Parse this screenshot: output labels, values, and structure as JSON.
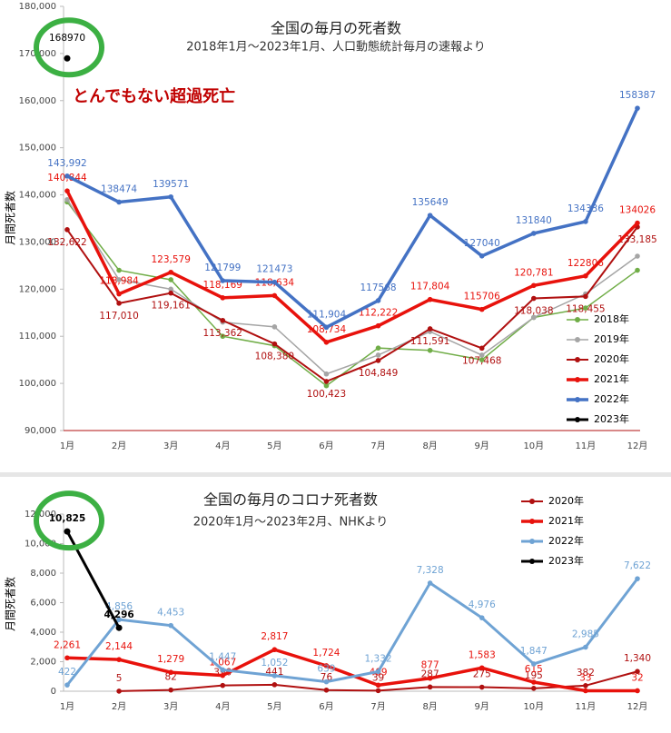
{
  "chart_data": [
    {
      "type": "line",
      "title": "全国の毎月の死者数",
      "subtitle": "2018年1月～2023年1月、人口動態統計毎月の速報より",
      "annotation": "とんでもない超過死亡",
      "y_label": "月間死者数",
      "categories": [
        "1月",
        "2月",
        "3月",
        "4月",
        "5月",
        "6月",
        "7月",
        "8月",
        "9月",
        "10月",
        "11月",
        "12月"
      ],
      "ylim": [
        90000,
        180000
      ],
      "yticks": [
        {
          "value": 90000,
          "label": "90,000"
        },
        {
          "value": 100000,
          "label": "100,000"
        },
        {
          "value": 110000,
          "label": "110,000"
        },
        {
          "value": 120000,
          "label": "120,000"
        },
        {
          "value": 130000,
          "label": "130,000"
        },
        {
          "value": 140000,
          "label": "140,000"
        },
        {
          "value": 150000,
          "label": "150,000"
        },
        {
          "value": 160000,
          "label": "160,000"
        },
        {
          "value": 170000,
          "label": "170,000"
        },
        {
          "value": 180000,
          "label": "180,000"
        }
      ],
      "grid": false,
      "legend": "lower right",
      "series": [
        {
          "name": "2018年",
          "color": "#70ad47",
          "width": 1.5,
          "values": [
            138500,
            124000,
            122000,
            110000,
            108000,
            99500,
            107500,
            107000,
            105000,
            114000,
            116000,
            124000
          ]
        },
        {
          "name": "2019年",
          "color": "#a5a5a5",
          "width": 1.5,
          "values": [
            139000,
            122000,
            120000,
            113000,
            112000,
            102000,
            106000,
            111000,
            106000,
            114000,
            119000,
            127000
          ]
        },
        {
          "name": "2020年",
          "color": "#b01010",
          "width": 2,
          "label_position": "below",
          "values": [
            132622,
            117010,
            119161,
            113362,
            108380,
            100423,
            104849,
            111591,
            107468,
            118038,
            118455,
            133185
          ],
          "value_labels": [
            "132,622",
            "117,010",
            "119,161",
            "113,362",
            "108,380",
            "100,423",
            "104,849",
            "111,591",
            "107,468",
            "118,038",
            "118,455",
            "133,185"
          ]
        },
        {
          "name": "2021年",
          "color": "#e8120c",
          "width": 3.5,
          "values": [
            140844,
            118984,
            123579,
            118169,
            118634,
            108734,
            112222,
            117804,
            115706,
            120781,
            122806,
            134026
          ],
          "value_labels": [
            "140,844",
            "118,984",
            "123,579",
            "118,169",
            "118,634",
            "108,734",
            "112,222",
            "117,804",
            "115706",
            "120,781",
            "122806",
            "134026"
          ]
        },
        {
          "name": "2022年",
          "color": "#4472c4",
          "width": 3.5,
          "values": [
            143992,
            138474,
            139571,
            121799,
            121473,
            111904,
            117568,
            135649,
            127040,
            131840,
            134336,
            158387
          ],
          "value_labels": [
            "143,992",
            "138474",
            "139571",
            "121799",
            "121473",
            "111,904",
            "117568",
            "135649",
            "127040",
            "131840",
            "134336",
            "158387"
          ]
        },
        {
          "name": "2023年",
          "color": "#000000",
          "width": 3,
          "highlight": true,
          "values": [
            168970,
            null,
            null,
            null,
            null,
            null,
            null,
            null,
            null,
            null,
            null,
            null
          ]
        }
      ]
    },
    {
      "type": "line",
      "title": "全国の毎月のコロナ死者数",
      "subtitle": "2020年1月～2023年2月、NHKより",
      "y_label": "月間死者数",
      "categories": [
        "1月",
        "2月",
        "3月",
        "4月",
        "5月",
        "6月",
        "7月",
        "8月",
        "9月",
        "10月",
        "11月",
        "12月"
      ],
      "ylim": [
        0,
        12000
      ],
      "yticks": [
        0,
        {
          "value": 2000,
          "label": "2,000"
        },
        {
          "value": 4000,
          "label": "4,000"
        },
        {
          "value": 6000,
          "label": "6,000"
        },
        {
          "value": 8000,
          "label": "8,000"
        },
        {
          "value": 10000,
          "label": "10,000"
        },
        {
          "value": 12000,
          "label": "12,000"
        }
      ],
      "grid": false,
      "legend": "upper right",
      "series": [
        {
          "name": "2020年",
          "color": "#b01010",
          "width": 2,
          "values": [
            null,
            5,
            82,
            390,
            441,
            76,
            39,
            287,
            275,
            195,
            382,
            1340
          ],
          "value_labels": [
            null,
            "5",
            "82",
            "390",
            "441",
            "76",
            "39",
            "287",
            "275",
            "195",
            "382",
            "1,340"
          ]
        },
        {
          "name": "2021年",
          "color": "#e8120c",
          "width": 3.5,
          "values": [
            2261,
            2144,
            1279,
            1067,
            2817,
            1724,
            409,
            877,
            1583,
            615,
            33,
            32
          ],
          "value_labels": [
            "2,261",
            "2,144",
            "1,279",
            "1,067",
            "2,817",
            "1,724",
            "409",
            "877",
            "1,583",
            "615",
            "33",
            "32"
          ]
        },
        {
          "name": "2022年",
          "color": "#6fa3d4",
          "width": 3,
          "values": [
            422,
            4856,
            4453,
            1447,
            1052,
            639,
            1332,
            7328,
            4976,
            1847,
            2985,
            7622
          ],
          "value_labels": [
            "422",
            "4,856",
            "4,453",
            "1,447",
            "1,052",
            "639",
            "1,332",
            "7,328",
            "4,976",
            "1,847",
            "2,985",
            "7,622"
          ]
        },
        {
          "name": "2023年",
          "color": "#000000",
          "width": 3,
          "highlight": true,
          "values": [
            10825,
            4296,
            null,
            null,
            null,
            null,
            null,
            null,
            null,
            null,
            null,
            null
          ],
          "value_labels": [
            "10,825",
            "4,296",
            null,
            null,
            null,
            null,
            null,
            null,
            null,
            null,
            null,
            null
          ]
        }
      ]
    }
  ]
}
